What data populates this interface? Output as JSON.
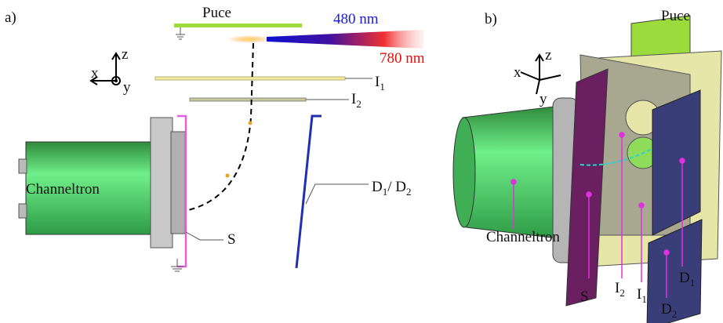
{
  "panel_a": {
    "label": "a)",
    "puce": "Puce",
    "wavelength_short": "480 nm",
    "wavelength_long": "780 nm",
    "axes": {
      "x": "x",
      "y": "y",
      "z": "z"
    },
    "i1": {
      "text": "I",
      "sub": "1"
    },
    "i2": {
      "text": "I",
      "sub": "2"
    },
    "channeltron": "Channeltron",
    "detector": {
      "d": "D",
      "sub1": "1",
      "sep": "/ D",
      "sub2": "2"
    },
    "shield": "S"
  },
  "panel_b": {
    "label": "b)",
    "puce": "Puce",
    "axes": {
      "x": "x",
      "y": "y",
      "z": "z"
    },
    "channeltron": "Channeltron",
    "shield": "S",
    "i2": {
      "text": "I",
      "sub": "2"
    },
    "i1": {
      "text": "I",
      "sub": "1"
    },
    "d1": {
      "text": "D",
      "sub": "1"
    },
    "d2": {
      "text": "D",
      "sub": "2"
    }
  }
}
